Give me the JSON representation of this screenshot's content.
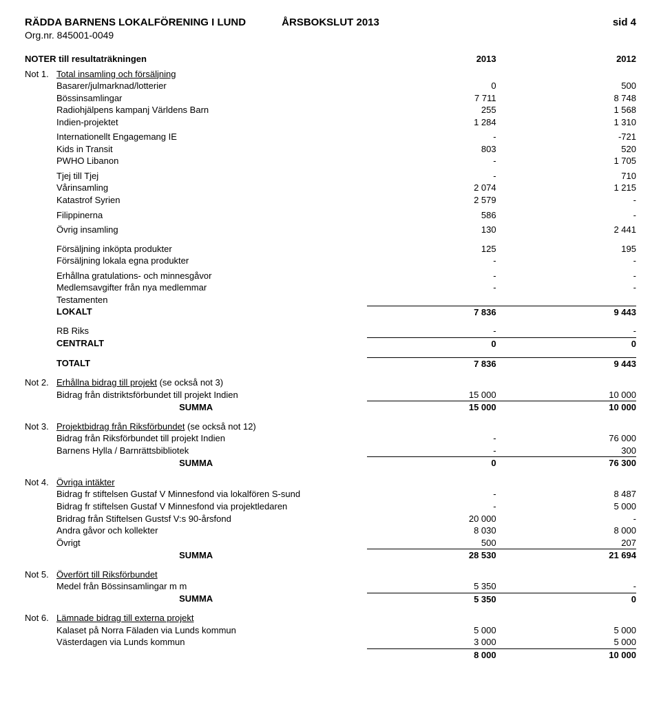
{
  "header": {
    "title_left": "RÄDDA BARNENS LOKALFÖRENING I LUND",
    "title_center": "ÅRSBOKSLUT 2013",
    "title_right": "sid 4",
    "orgnr_label": "Org.nr. 845001-0049"
  },
  "noter_heading": {
    "label": "NOTER till resultaträkningen",
    "col2013": "2013",
    "col2012": "2012"
  },
  "not1": {
    "tag": "Not 1.",
    "title": "Total insamling och försäljning",
    "rows": [
      {
        "l": "Basarer/julmarknad/lotterier",
        "a": "0",
        "b": "500"
      },
      {
        "l": "Bössinsamlingar",
        "a": "7 711",
        "b": "8 748"
      },
      {
        "l": "Radiohjälpens kampanj Världens Barn",
        "a": "255",
        "b": "1 568"
      },
      {
        "l": "Indien-projektet",
        "a": "1 284",
        "b": "1 310"
      },
      {
        "l": "Internationellt Engagemang IE",
        "a": "-",
        "b": "-721"
      },
      {
        "l": "Kids in Transit",
        "a": "803",
        "b": "520"
      },
      {
        "l": "PWHO Libanon",
        "a": "-",
        "b": "1 705"
      },
      {
        "l": "Tjej till Tjej",
        "a": "-",
        "b": "710"
      },
      {
        "l": "Vårinsamling",
        "a": "2 074",
        "b": "1 215"
      },
      {
        "l": "Katastrof Syrien",
        "a": "2 579",
        "b": "-"
      },
      {
        "l": "Filippinerna",
        "a": "586",
        "b": "-"
      },
      {
        "l": "Övrig insamling",
        "a": "130",
        "b": "2 441"
      },
      {
        "l": "Försäljning inköpta produkter",
        "a": "125",
        "b": "195"
      },
      {
        "l": "Försäljning lokala egna produkter",
        "a": "-",
        "b": "-"
      },
      {
        "l": "Erhållna gratulations- och minnesgåvor",
        "a": "-",
        "b": "-"
      },
      {
        "l": "Medlemsavgifter från nya medlemmar",
        "a": "-",
        "b": "-"
      },
      {
        "l": "Testamenten",
        "a": "",
        "b": ""
      }
    ],
    "lokalt": {
      "l": "LOKALT",
      "a": "7 836",
      "b": "9 443"
    },
    "rbriks": {
      "l": "RB Riks",
      "a": "-",
      "b": "-"
    },
    "centralt": {
      "l": "CENTRALT",
      "a": "0",
      "b": "0"
    },
    "totalt": {
      "l": "TOTALT",
      "a": "7 836",
      "b": "9 443"
    }
  },
  "not2": {
    "tag": "Not 2.",
    "title": "Erhållna bidrag till projekt",
    "title_suffix": " (se också not 3)",
    "r1": {
      "l": "Bidrag från distriktsförbundet till projekt Indien",
      "a": "15 000",
      "b": "10 000"
    },
    "sum": {
      "l": "SUMMA",
      "a": "15 000",
      "b": "10 000"
    }
  },
  "not3": {
    "tag": "Not 3.",
    "title": "Projektbidrag från Riksförbundet",
    "title_suffix": " (se också not 12)",
    "r1": {
      "l": "Bidrag från Riksförbundet till projekt Indien",
      "a": "-",
      "b": "76 000"
    },
    "r2": {
      "l": "Barnens Hylla / Barnrättsbibliotek",
      "a": "-",
      "b": "300"
    },
    "sum": {
      "l": "SUMMA",
      "a": "0",
      "b": "76 300"
    }
  },
  "not4": {
    "tag": "Not 4.",
    "title": "Övriga intäkter",
    "r1": {
      "l": "Bidrag fr stiftelsen Gustaf V Minnesfond via lokalfören S-sund",
      "a": "-",
      "b": "8 487"
    },
    "r2": {
      "l": "Bidrag fr stiftelsen Gustaf V Minnesfond via projektledaren",
      "a": "-",
      "b": "5 000"
    },
    "r3": {
      "l": "Bridrag från Stiftelsen Gustsf V:s 90-årsfond",
      "a": "20 000",
      "b": "-"
    },
    "r4": {
      "l": "Andra gåvor och kollekter",
      "a": "8 030",
      "b": "8 000"
    },
    "r5": {
      "l": "Övrigt",
      "a": "500",
      "b": "207"
    },
    "sum": {
      "l": "SUMMA",
      "a": "28 530",
      "b": "21 694"
    }
  },
  "not5": {
    "tag": "Not 5.",
    "title": "Överfört till Riksförbundet",
    "r1": {
      "l": "Medel från Bössinsamlingar m m",
      "a": "5 350",
      "b": "-"
    },
    "sum": {
      "l": "SUMMA",
      "a": "5 350",
      "b": "0"
    }
  },
  "not6": {
    "tag": "Not 6.",
    "title": "Lämnade bidrag till externa projekt",
    "r1": {
      "l": "Kalaset på Norra Fäladen via Lunds kommun",
      "a": "5 000",
      "b": "5 000"
    },
    "r2": {
      "l": "Västerdagen via Lunds kommun",
      "a": "3 000",
      "b": "5 000"
    },
    "sum": {
      "a": "8 000",
      "b": "10 000"
    }
  }
}
